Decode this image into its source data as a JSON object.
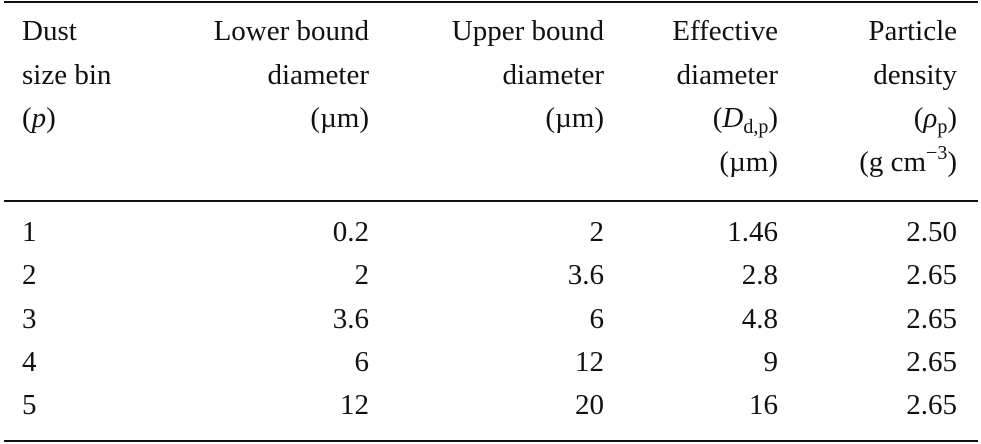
{
  "table": {
    "headers": [
      [
        [
          "Dust"
        ],
        [
          "size bin"
        ],
        [
          "(",
          {
            "italic": "p"
          },
          ")"
        ]
      ],
      [
        [
          "Lower bound"
        ],
        [
          "diameter"
        ],
        [
          "(µm)"
        ]
      ],
      [
        [
          "Upper bound"
        ],
        [
          "diameter"
        ],
        [
          "(µm)"
        ]
      ],
      [
        [
          "Effective"
        ],
        [
          "diameter"
        ],
        [
          "(",
          {
            "italic": "D"
          },
          {
            "sub": "d,p"
          },
          ")"
        ],
        [
          "(µm)"
        ]
      ],
      [
        [
          "Particle"
        ],
        [
          "density"
        ],
        [
          "(",
          {
            "italic": "ρ"
          },
          {
            "sub": "p"
          },
          ")"
        ],
        [
          "(g cm",
          {
            "sup": "−3"
          },
          ")"
        ]
      ]
    ],
    "rows": [
      [
        "1",
        "0.2",
        "2",
        "1.46",
        "2.50"
      ],
      [
        "2",
        "2",
        "3.6",
        "2.8",
        "2.65"
      ],
      [
        "3",
        "3.6",
        "6",
        "4.8",
        "2.65"
      ],
      [
        "4",
        "6",
        "12",
        "9",
        "2.65"
      ],
      [
        "5",
        "12",
        "20",
        "16",
        "2.65"
      ]
    ]
  }
}
